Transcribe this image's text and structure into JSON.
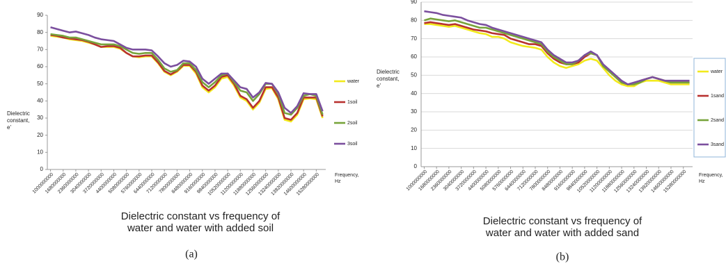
{
  "chart_data": [
    {
      "type": "line",
      "panel_label": "(a)",
      "title": [
        "Dielectric constant vs frequency of",
        "water and water with added soil"
      ],
      "y_label": [
        "Dielectric",
        "constant,",
        "e'"
      ],
      "x_label": [
        "Frequency,",
        "Hz"
      ],
      "categories": [
        "1000000000",
        null,
        "1680000000",
        null,
        "2360000000",
        null,
        "3040000000",
        null,
        "3720000000",
        null,
        "4400000000",
        null,
        "5080000000",
        null,
        "5760000000",
        null,
        "6440000000",
        null,
        "7120000000",
        null,
        "7800000000",
        null,
        "8480000000",
        null,
        "9160000000",
        null,
        "9840000000",
        null,
        "10520000000",
        null,
        "11200000000",
        null,
        "11880000000",
        null,
        "12560000000",
        null,
        "13240000000",
        null,
        "13920000000",
        null,
        "14600000000",
        null,
        "15280000000",
        null
      ],
      "ylim": [
        0,
        90
      ],
      "yticks": [
        0,
        10,
        20,
        30,
        40,
        50,
        60,
        70,
        80,
        90
      ],
      "grid": false,
      "series": [
        {
          "name": "water",
          "color": "#f2ea1c",
          "values": [
            78,
            77.5,
            77,
            76,
            75.5,
            75,
            74,
            73,
            71.5,
            71.5,
            71.5,
            70.5,
            68,
            66,
            65.5,
            66,
            66,
            62,
            57,
            55,
            57,
            60.5,
            60.5,
            56,
            48,
            45,
            48,
            53,
            54,
            49,
            42,
            40,
            35,
            39,
            47,
            47.5,
            41,
            29,
            28,
            32,
            41,
            41.5,
            41,
            30
          ]
        },
        {
          "name": "1soil",
          "color": "#b8312f",
          "values": [
            78.5,
            78,
            77,
            76.5,
            76,
            75.5,
            74.5,
            73,
            71.5,
            72,
            72,
            71,
            68,
            66,
            66,
            66.5,
            66.5,
            62.5,
            57.5,
            55.5,
            57.5,
            61,
            61,
            57,
            49,
            46,
            49,
            54,
            55,
            50,
            43,
            41,
            36,
            40,
            48,
            48,
            42,
            30,
            29,
            33,
            42,
            42,
            42,
            31
          ]
        },
        {
          "name": "2soil",
          "color": "#77a33a",
          "values": [
            79,
            78.5,
            78,
            77,
            77,
            76,
            75,
            74,
            73,
            73,
            73,
            72,
            70,
            68,
            67.5,
            68,
            68,
            64,
            59,
            57,
            58,
            62,
            62,
            58,
            51,
            48,
            51,
            55,
            56,
            51,
            46,
            45,
            40,
            44,
            50,
            50,
            44,
            33,
            32,
            36,
            43,
            44,
            43,
            32
          ]
        },
        {
          "name": "3soil",
          "color": "#7b4f9e",
          "values": [
            83,
            82,
            81,
            80,
            80.5,
            79.5,
            78.5,
            77,
            76,
            75.5,
            75,
            73,
            71,
            70,
            70,
            70,
            69.5,
            66,
            62,
            60,
            61,
            63.5,
            63,
            60,
            53,
            50,
            53,
            56,
            56,
            52,
            48,
            47,
            42,
            45,
            50.5,
            50,
            45,
            36,
            33,
            37,
            44.5,
            44,
            44,
            34
          ]
        }
      ]
    },
    {
      "type": "line",
      "panel_label": "(b)",
      "title": [
        "Dielectric constant vs frequency of",
        "water and water with added sand"
      ],
      "y_label": [
        "Dielectric",
        "constant,",
        "e'"
      ],
      "x_label": [
        "Frequency,",
        "Hz"
      ],
      "categories": [
        "1000000000",
        null,
        "1680000000",
        null,
        "2360000000",
        null,
        "3040000000",
        null,
        "3720000000",
        null,
        "4400000000",
        null,
        "5080000000",
        null,
        "5760000000",
        null,
        "6440000000",
        null,
        "7120000000",
        null,
        "7800000000",
        null,
        "8480000000",
        null,
        "9160000000",
        null,
        "9840000000",
        null,
        "10520000000",
        null,
        "11200000000",
        null,
        "11880000000",
        null,
        "12560000000",
        null,
        "13240000000",
        null,
        "13920000000",
        null,
        "14600000000",
        null,
        "15280000000",
        null
      ],
      "ylim": [
        0,
        90
      ],
      "yticks": [
        0,
        10,
        20,
        30,
        40,
        50,
        60,
        70,
        80,
        90
      ],
      "grid": true,
      "series": [
        {
          "name": "water",
          "color": "#f2ea1c",
          "values": [
            78,
            78,
            77.5,
            77,
            76.5,
            77,
            76,
            75,
            74,
            73,
            72.5,
            71,
            71,
            70,
            68,
            67,
            66,
            65.5,
            65,
            64,
            60,
            57,
            55,
            54,
            55,
            56,
            58,
            59,
            58,
            54,
            50,
            47,
            45,
            44,
            44,
            46,
            47,
            47,
            47,
            46,
            45,
            45,
            45,
            45
          ]
        },
        {
          "name": "1sand",
          "color": "#b8312f",
          "values": [
            78.5,
            79,
            78.5,
            78,
            77.5,
            78,
            77,
            76,
            75,
            74.5,
            74,
            73,
            72.5,
            72,
            70,
            69,
            68,
            67,
            67,
            66,
            62,
            59,
            57,
            56,
            56,
            57,
            60,
            62,
            61,
            55,
            52,
            49,
            46,
            45,
            45,
            47,
            48,
            49,
            48,
            47,
            46,
            46,
            46,
            46
          ]
        },
        {
          "name": "2sand",
          "color": "#77a33a",
          "values": [
            80,
            81,
            80.5,
            80,
            79.5,
            80,
            79,
            78,
            77,
            76,
            76,
            75,
            74,
            73,
            72,
            71,
            70,
            69,
            68,
            67,
            63,
            60,
            58,
            56,
            56,
            58,
            61,
            62,
            61,
            55,
            52,
            49,
            46,
            45,
            45,
            46,
            48,
            49,
            48,
            47,
            46,
            46,
            46,
            46
          ]
        },
        {
          "name": "3sand",
          "color": "#7b4f9e",
          "values": [
            85,
            84.5,
            84,
            83,
            82.5,
            82,
            81.5,
            80,
            79,
            78,
            77.5,
            76,
            75,
            74,
            73,
            72,
            71,
            70,
            69,
            68,
            64,
            61,
            59,
            57,
            57,
            58,
            61,
            63,
            61,
            56,
            53,
            50,
            47,
            45,
            46,
            47,
            48,
            49,
            48,
            47,
            47,
            47,
            47,
            47
          ]
        }
      ]
    }
  ]
}
